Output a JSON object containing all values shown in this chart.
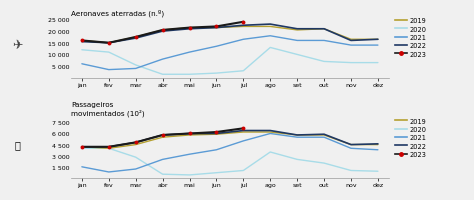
{
  "months": [
    "jan",
    "fev",
    "mar",
    "abr",
    "mai",
    "jun",
    "jul",
    "ago",
    "set",
    "out",
    "nov",
    "dez"
  ],
  "title1": "Aeronaves aterradas (n.º)",
  "title2": "Passageiros\nmovimentados (10²)",
  "aeronaves": {
    "2019": [
      16000,
      15000,
      17500,
      20500,
      21500,
      21500,
      22000,
      22000,
      20500,
      21000,
      16500,
      16500
    ],
    "2020": [
      12000,
      11000,
      5500,
      1500,
      1500,
      2000,
      3000,
      13000,
      10000,
      7000,
      6500,
      6500
    ],
    "2021": [
      6000,
      3500,
      4000,
      8000,
      11000,
      13500,
      16500,
      18000,
      16000,
      16000,
      14000,
      14000
    ],
    "2022": [
      15500,
      15000,
      17000,
      20000,
      21000,
      21500,
      22500,
      23000,
      21000,
      21000,
      16000,
      16500
    ],
    "2023": [
      16000,
      15000,
      17500,
      20500,
      21500,
      22000,
      24000,
      null,
      null,
      null,
      null,
      null
    ]
  },
  "passageiros": {
    "2019": [
      4200,
      4000,
      4500,
      5500,
      5800,
      5900,
      6200,
      6200,
      5800,
      5800,
      4500,
      4500
    ],
    "2020": [
      4000,
      4000,
      2800,
      500,
      400,
      700,
      1000,
      3500,
      2500,
      2000,
      1000,
      900
    ],
    "2021": [
      1500,
      800,
      1200,
      2500,
      3200,
      3800,
      5000,
      6000,
      5500,
      5500,
      4000,
      3800
    ],
    "2022": [
      4200,
      4200,
      4800,
      5800,
      6000,
      6000,
      6400,
      6400,
      5800,
      5900,
      4500,
      4600
    ],
    "2023": [
      4200,
      4200,
      4800,
      5800,
      6000,
      6200,
      6700,
      null,
      null,
      null,
      null,
      null
    ]
  },
  "colors": {
    "2019": "#b5a030",
    "2020": "#a8dce8",
    "2021": "#5b9bd5",
    "2022": "#1f3864",
    "2023": "#1a1a1a"
  },
  "marker_color": "#cc0000",
  "background": "#f0f0f0",
  "aeronaves_yticks": [
    5000,
    10000,
    15000,
    20000,
    25000
  ],
  "aeronaves_ylim": [
    0,
    26000
  ],
  "passageiros_yticks": [
    1500,
    3000,
    4500,
    6000,
    7500
  ],
  "passageiros_ylim": [
    0,
    8200
  ],
  "legend_years": [
    "2019",
    "2020",
    "2021",
    "2022",
    "2023"
  ]
}
